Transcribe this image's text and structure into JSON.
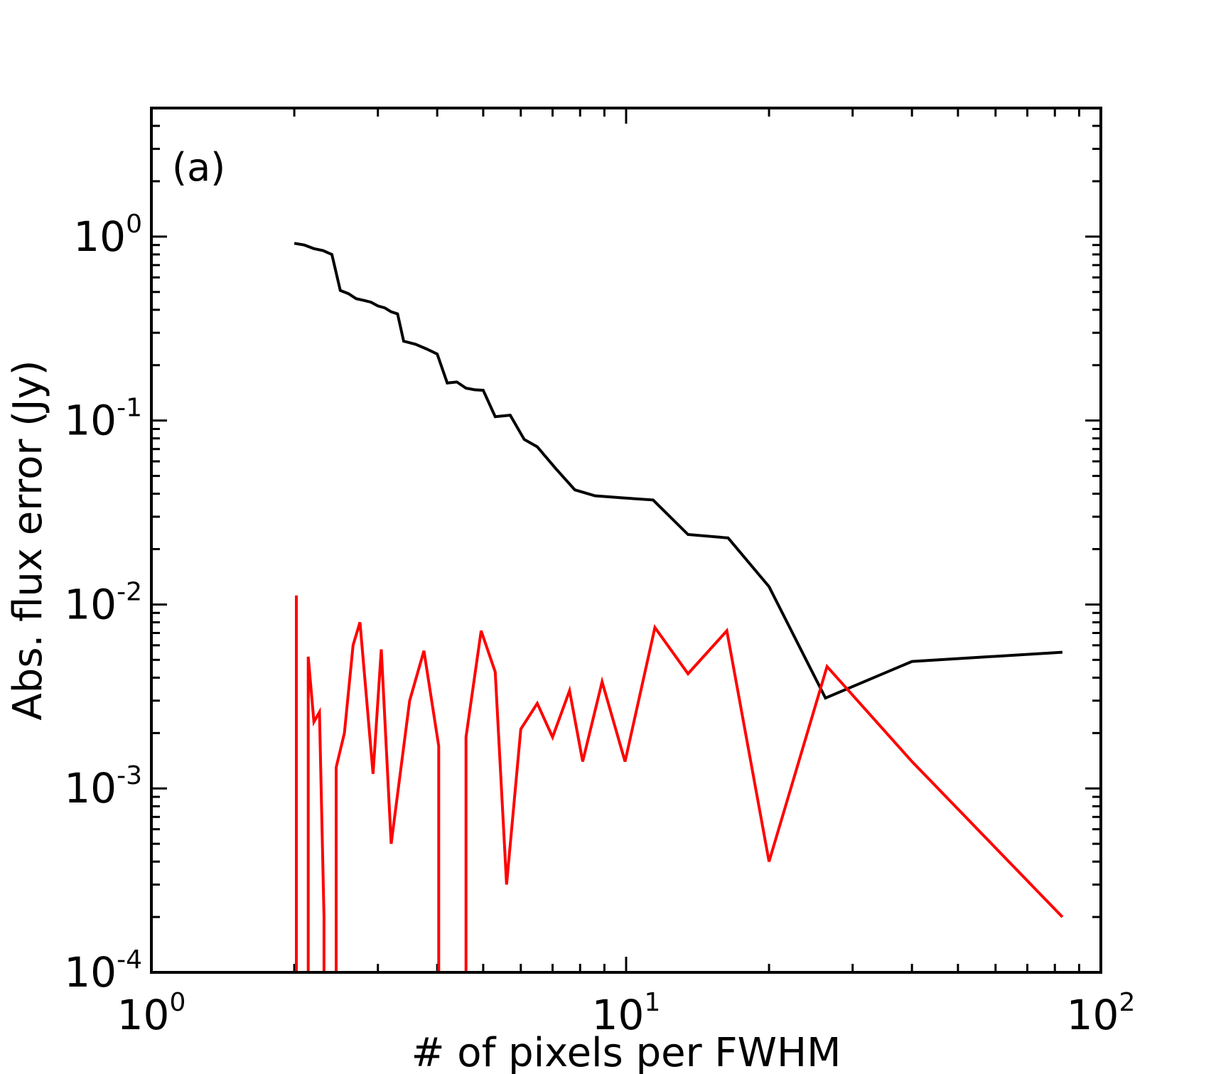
{
  "chart_data": {
    "type": "line",
    "title": "",
    "panel_label": "(a)",
    "xlabel": "# of pixels per FWHM",
    "ylabel": "Abs. flux error (Jy)",
    "xscale": "log",
    "yscale": "log",
    "xlim": [
      1,
      100
    ],
    "ylim": [
      0.0001,
      5
    ],
    "grid": false,
    "x_ticks": [
      {
        "base": "10",
        "exp": "0",
        "value": 1
      },
      {
        "base": "10",
        "exp": "1",
        "value": 10
      },
      {
        "base": "10",
        "exp": "2",
        "value": 100
      }
    ],
    "y_ticks": [
      {
        "base": "10",
        "exp": "-4",
        "value": 0.0001
      },
      {
        "base": "10",
        "exp": "-3",
        "value": 0.001
      },
      {
        "base": "10",
        "exp": "-2",
        "value": 0.01
      },
      {
        "base": "10",
        "exp": "-1",
        "value": 0.1
      },
      {
        "base": "10",
        "exp": "0",
        "value": 1
      }
    ],
    "series": [
      {
        "name": "black",
        "color": "#000000",
        "x": [
          2.0,
          2.1,
          2.2,
          2.3,
          2.4,
          2.5,
          2.6,
          2.7,
          2.8,
          2.9,
          3.0,
          3.1,
          3.2,
          3.3,
          3.4,
          3.6,
          3.8,
          4.0,
          4.2,
          4.4,
          4.6,
          4.8,
          5.0,
          5.3,
          5.7,
          6.1,
          6.5,
          7.1,
          7.8,
          8.6,
          9.8,
          11.4,
          13.5,
          16.4,
          20.0,
          26.3,
          40.0,
          83.0
        ],
        "y": [
          0.92,
          0.9,
          0.86,
          0.84,
          0.8,
          0.51,
          0.49,
          0.46,
          0.45,
          0.44,
          0.42,
          0.41,
          0.39,
          0.38,
          0.27,
          0.26,
          0.245,
          0.23,
          0.16,
          0.162,
          0.15,
          0.147,
          0.146,
          0.105,
          0.107,
          0.079,
          0.072,
          0.055,
          0.042,
          0.039,
          0.038,
          0.037,
          0.024,
          0.023,
          0.0125,
          0.0031,
          0.0049,
          0.0055
        ]
      },
      {
        "name": "red",
        "color": "#ff0000",
        "segments": [
          {
            "x": [
              2.02,
              2.02
            ],
            "y": [
              0.0001,
              0.0112
            ]
          },
          {
            "x": [
              2.14,
              2.14,
              2.2,
              2.26,
              2.31,
              2.31
            ],
            "y": [
              0.0001,
              0.0052,
              0.0023,
              0.0026,
              0.0002,
              0.0001
            ]
          },
          {
            "x": [
              2.45,
              2.45,
              2.55,
              2.66,
              2.75,
              2.93,
              3.05,
              3.2,
              3.5,
              3.75,
              4.03,
              4.03
            ],
            "y": [
              0.0001,
              0.0013,
              0.002,
              0.006,
              0.008,
              0.0012,
              0.0057,
              0.0005,
              0.003,
              0.0056,
              0.0017,
              0.0001
            ]
          },
          {
            "x": [
              4.6,
              4.6,
              4.95,
              5.3,
              5.6,
              6.0,
              6.5,
              7.0,
              7.6,
              8.1,
              8.9,
              9.95,
              11.5,
              13.5,
              16.3,
              20.0,
              26.5,
              40.0,
              83.0
            ],
            "y": [
              0.0001,
              0.0019,
              0.0072,
              0.0043,
              0.0003,
              0.0021,
              0.0029,
              0.0019,
              0.0034,
              0.0014,
              0.0038,
              0.0014,
              0.0075,
              0.0042,
              0.0072,
              0.0004,
              0.0046,
              0.0014,
              0.0002
            ]
          }
        ]
      }
    ]
  }
}
